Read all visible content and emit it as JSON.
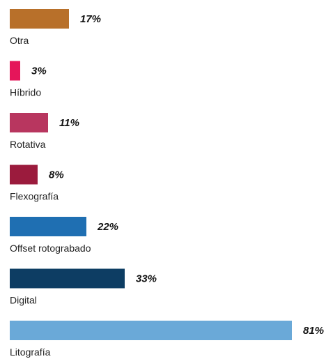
{
  "chart_data": {
    "type": "bar",
    "orientation": "horizontal",
    "categories": [
      "Otra",
      "Híbrido",
      "Rotativa",
      "Flexografía",
      "Offset rotograbado",
      "Digital",
      "Litografía"
    ],
    "values": [
      17,
      3,
      11,
      8,
      22,
      33,
      81
    ],
    "value_labels": [
      "17%",
      "3%",
      "11%",
      "8%",
      "22%",
      "33%",
      "81%"
    ],
    "colors": [
      "#b8702a",
      "#e5155a",
      "#b8365f",
      "#9b1b3d",
      "#1f6fb2",
      "#0d3d63",
      "#6aa9d8"
    ],
    "unit": "%",
    "xlim": [
      0,
      100
    ],
    "title": "",
    "xlabel": "",
    "ylabel": "",
    "grid": false,
    "legend": "none"
  }
}
